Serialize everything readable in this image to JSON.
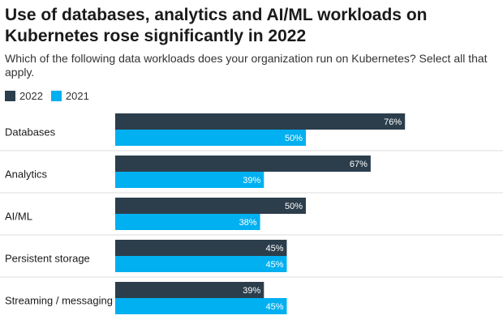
{
  "chart_data": {
    "type": "bar",
    "orientation": "horizontal",
    "title": "Use of databases, analytics and AI/ML workloads on Kubernetes rose significantly in 2022",
    "subtitle": "Which of the following data workloads does your organization run on Kubernetes? Select all that apply.",
    "categories": [
      "Databases",
      "Analytics",
      "AI/ML",
      "Persistent storage",
      "Streaming / messaging"
    ],
    "series": [
      {
        "name": "2022",
        "color": "#2c3e4c",
        "values": [
          76,
          67,
          50,
          45,
          39
        ]
      },
      {
        "name": "2021",
        "color": "#00b0f0",
        "values": [
          50,
          39,
          38,
          45,
          45
        ]
      }
    ],
    "value_suffix": "%",
    "xlim": [
      0,
      100
    ],
    "xlabel": "",
    "ylabel": "",
    "grid": false,
    "legend_position": "top-left"
  }
}
